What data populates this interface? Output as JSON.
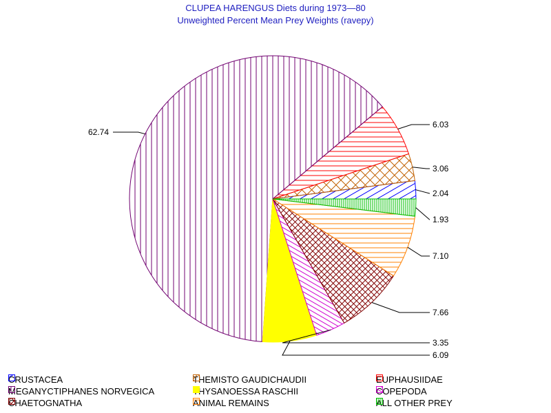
{
  "chart_data": {
    "type": "pie",
    "title": "CLUPEA HARENGUS Diets during 1973—80",
    "subtitle": "Unweighted Percent Mean Prey Weights (ravepy)",
    "slices": [
      {
        "label": "CRUSTACEA",
        "value": 2.04,
        "color": "#0000ff",
        "pattern": "diag-up",
        "value_label": "2.04"
      },
      {
        "label": "THEMISTO GAUDICHAUDII",
        "value": 3.06,
        "color": "#c06000",
        "pattern": "cross-diag",
        "value_label": "3.06"
      },
      {
        "label": "EUPHAUSIIDAE",
        "value": 6.03,
        "color": "#ff0000",
        "pattern": "horizontal",
        "value_label": "6.03"
      },
      {
        "label": "MEGANYCTIPHANES NORVEGICA",
        "value": 62.74,
        "color": "#700070",
        "pattern": "vertical",
        "value_label": "62.74"
      },
      {
        "label": "THYSANOESSA RASCHII",
        "value": 6.09,
        "color": "#ffff00",
        "pattern": "solid",
        "value_label": "6.09"
      },
      {
        "label": "COPEPODA",
        "value": 3.35,
        "color": "#d000d0",
        "pattern": "diag-down",
        "value_label": "3.35"
      },
      {
        "label": "CHAETOGNATHA",
        "value": 7.66,
        "color": "#800000",
        "pattern": "crosshatch-diag",
        "value_label": "7.66"
      },
      {
        "label": "ANIMAL REMAINS",
        "value": 7.1,
        "color": "#ff8000",
        "pattern": "horizontal",
        "value_label": "7.10"
      },
      {
        "label": "ALL OTHER PREY",
        "value": 1.93,
        "color": "#00c000",
        "pattern": "vertical-dense",
        "value_label": "1.93"
      }
    ],
    "legend_position": "bottom"
  }
}
